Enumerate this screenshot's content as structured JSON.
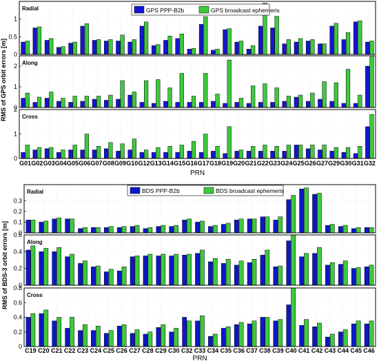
{
  "colors": {
    "gps_series": "#1515d6",
    "bds_series": "#0c17c9",
    "brdc_series": "#3ec93e",
    "edge": "#000000",
    "grid": "#d9d9d9"
  },
  "chart_data": [
    {
      "type": "bar",
      "ylabel": "RMS of GPS orbit errors [m]",
      "xlabel": "PRN",
      "categories": [
        "G01",
        "G02",
        "G03",
        "G04",
        "G05",
        "G06",
        "G07",
        "G08",
        "G09",
        "G10",
        "G12",
        "G13",
        "G14",
        "G15",
        "G16",
        "G17",
        "G18",
        "G19",
        "G20",
        "G21",
        "G22",
        "G23",
        "G24",
        "G25",
        "G26",
        "G27",
        "G29",
        "G30",
        "G31",
        "G32"
      ],
      "legend": {
        "placement": "top-center",
        "entries": [
          "GPS PPP-B2b",
          "GPS broadcast ephemeris"
        ]
      },
      "panels": [
        {
          "title": "Radial",
          "ylim": [
            0,
            1.5
          ],
          "yticks": [
            0,
            0.5,
            1
          ],
          "series": [
            {
              "name": "GPS PPP-B2b",
              "values": [
                0.35,
                0.75,
                0.4,
                0.2,
                0.32,
                0.8,
                0.4,
                0.38,
                0.38,
                0.35,
                0.8,
                0.25,
                0.4,
                0.45,
                0.15,
                0.85,
                0.12,
                0.7,
                0.35,
                0.15,
                0.8,
                0.75,
                0.3,
                0.35,
                0.38,
                0.3,
                0.8,
                0.42,
                0.92,
                0.35
              ]
            },
            {
              "name": "GPS broadcast ephemeris",
              "values": [
                0.38,
                0.78,
                0.45,
                0.22,
                0.35,
                0.87,
                0.42,
                0.42,
                0.55,
                0.42,
                0.92,
                0.28,
                0.52,
                0.58,
                0.17,
                1.07,
                0.15,
                0.73,
                0.38,
                0.25,
                1.45,
                1.08,
                0.42,
                0.45,
                0.42,
                0.3,
                0.88,
                0.62,
                0.95,
                0.38
              ]
            }
          ]
        },
        {
          "title": "Along",
          "ylim": [
            0,
            2.5
          ],
          "yticks": [
            0,
            1,
            2
          ],
          "series": [
            {
              "name": "GPS PPP-B2b",
              "values": [
                0.45,
                0.25,
                0.45,
                0.3,
                0.25,
                0.3,
                0.4,
                0.35,
                0.4,
                0.6,
                0.25,
                0.2,
                0.3,
                0.25,
                0.25,
                0.25,
                0.3,
                0.2,
                0.25,
                0.2,
                0.25,
                0.25,
                0.3,
                0.5,
                0.3,
                0.4,
                0.3,
                0.2,
                0.2,
                2.0
              ]
            },
            {
              "name": "GPS broadcast ephemeris",
              "values": [
                0.7,
                0.5,
                0.75,
                0.45,
                0.55,
                0.55,
                0.55,
                0.6,
                1.3,
                0.75,
                1.3,
                1.35,
                0.95,
                1.65,
                0.55,
                1.65,
                0.65,
                2.3,
                0.45,
                1.05,
                1.15,
                0.95,
                0.55,
                0.6,
                0.7,
                1.25,
                1.2,
                1.85,
                0.6,
                2.45
              ]
            }
          ]
        },
        {
          "title": "Cross",
          "ylim": [
            0,
            2
          ],
          "yticks": [
            0,
            1,
            2
          ],
          "series": [
            {
              "name": "GPS PPP-B2b",
              "values": [
                0.25,
                0.35,
                0.4,
                0.25,
                0.35,
                0.35,
                0.35,
                0.4,
                0.3,
                0.35,
                0.25,
                0.25,
                0.25,
                0.25,
                0.3,
                0.25,
                0.3,
                0.2,
                0.3,
                0.3,
                0.3,
                0.3,
                0.3,
                0.55,
                0.4,
                0.35,
                0.3,
                0.25,
                0.2,
                1.3
              ]
            },
            {
              "name": "GPS broadcast ephemeris",
              "values": [
                0.55,
                0.45,
                0.45,
                0.35,
                0.55,
                1.0,
                0.5,
                0.65,
                0.6,
                0.8,
                0.35,
                0.45,
                0.5,
                0.55,
                0.7,
                1.0,
                0.5,
                1.3,
                0.35,
                0.5,
                0.55,
                0.5,
                0.55,
                0.55,
                0.55,
                0.55,
                0.45,
                0.45,
                0.5,
                1.8
              ]
            }
          ]
        }
      ]
    },
    {
      "type": "bar",
      "ylabel": "RMS of BDS-3 orbit errors [m]",
      "xlabel": "PRN",
      "categories": [
        "C19",
        "C20",
        "C21",
        "C22",
        "C23",
        "C24",
        "C25",
        "C26",
        "C27",
        "C28",
        "C29",
        "C30",
        "C32",
        "C33",
        "C34",
        "C35",
        "C36",
        "C37",
        "C38",
        "C39",
        "C40",
        "C41",
        "C42",
        "C43",
        "C44",
        "C45",
        "C46"
      ],
      "legend": {
        "placement": "top-center",
        "entries": [
          "BDS PPP-B2b",
          "BDS broadcast ephemeris"
        ]
      },
      "panels": [
        {
          "title": "Radial",
          "ylim": [
            0,
            0.45
          ],
          "yticks": [
            0,
            0.1,
            0.2,
            0.3
          ],
          "series": [
            {
              "name": "BDS PPP-B2b",
              "values": [
                0.12,
                0.1,
                0.13,
                0.13,
                0.04,
                0.05,
                0.05,
                0.05,
                0.06,
                0.04,
                0.06,
                0.06,
                0.12,
                0.1,
                0.06,
                0.08,
                0.12,
                0.13,
                0.15,
                0.12,
                0.31,
                0.41,
                0.36,
                0.07,
                0.06,
                0.04,
                0.05
              ]
            },
            {
              "name": "BDS broadcast ephemeris",
              "values": [
                0.12,
                0.11,
                0.14,
                0.13,
                0.05,
                0.05,
                0.06,
                0.06,
                0.07,
                0.05,
                0.07,
                0.07,
                0.13,
                0.11,
                0.07,
                0.09,
                0.13,
                0.13,
                0.15,
                0.15,
                0.35,
                0.42,
                0.37,
                0.08,
                0.07,
                0.05,
                0.05
              ]
            }
          ]
        },
        {
          "title": "Along",
          "ylim": [
            0,
            0.6
          ],
          "yticks": [
            0,
            0.2,
            0.4,
            0.6
          ],
          "series": [
            {
              "name": "BDS PPP-B2b",
              "values": [
                0.42,
                0.4,
                0.4,
                0.34,
                0.26,
                0.22,
                0.16,
                0.17,
                0.34,
                0.35,
                0.35,
                0.35,
                0.36,
                0.38,
                0.28,
                0.26,
                0.24,
                0.27,
                0.36,
                0.22,
                0.53,
                0.34,
                0.38,
                0.24,
                0.25,
                0.2,
                0.22
              ]
            },
            {
              "name": "BDS broadcast ephemeris",
              "values": [
                0.47,
                0.44,
                0.45,
                0.37,
                0.29,
                0.23,
                0.19,
                0.22,
                0.35,
                0.37,
                0.37,
                0.37,
                0.37,
                0.42,
                0.32,
                0.31,
                0.29,
                0.31,
                0.42,
                0.23,
                0.6,
                0.38,
                0.45,
                0.27,
                0.29,
                0.21,
                0.24
              ]
            }
          ]
        },
        {
          "title": "Cross",
          "ylim": [
            0,
            0.8
          ],
          "yticks": [
            0,
            0.2,
            0.4,
            0.6,
            0.8
          ],
          "series": [
            {
              "name": "BDS PPP-B2b",
              "values": [
                0.4,
                0.45,
                0.35,
                0.25,
                0.22,
                0.22,
                0.18,
                0.28,
                0.18,
                0.17,
                0.26,
                0.2,
                0.4,
                0.35,
                0.14,
                0.25,
                0.3,
                0.31,
                0.4,
                0.35,
                0.57,
                0.29,
                0.27,
                0.13,
                0.2,
                0.31,
                0.31
              ]
            },
            {
              "name": "BDS broadcast ephemeris",
              "values": [
                0.45,
                0.5,
                0.4,
                0.4,
                0.3,
                0.28,
                0.22,
                0.3,
                0.23,
                0.2,
                0.3,
                0.25,
                0.35,
                0.42,
                0.17,
                0.27,
                0.33,
                0.35,
                0.4,
                0.37,
                0.8,
                0.37,
                0.32,
                0.17,
                0.23,
                0.35,
                0.35
              ]
            }
          ]
        }
      ]
    }
  ]
}
